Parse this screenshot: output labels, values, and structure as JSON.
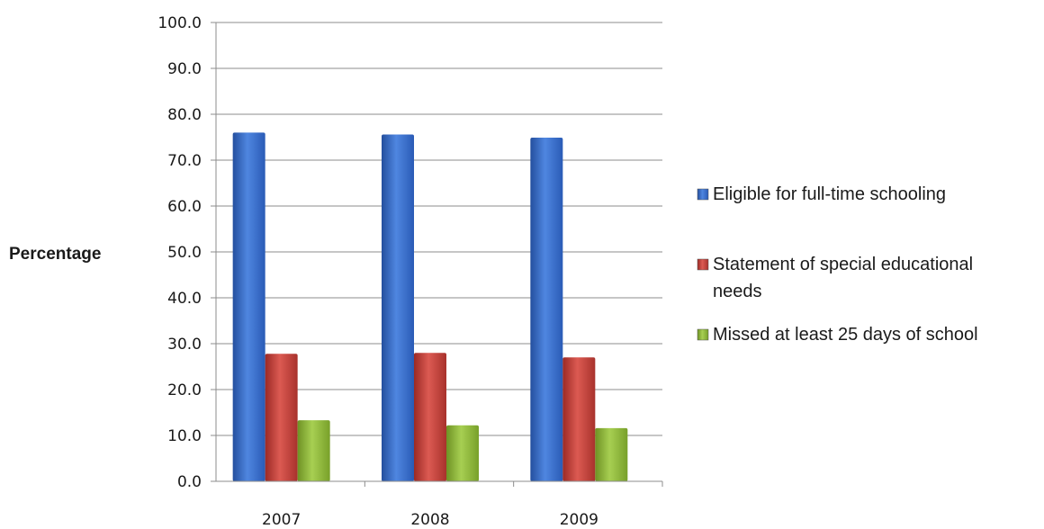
{
  "chart_data": {
    "type": "bar",
    "ylabel": "Percentage",
    "xlabel": "",
    "ylim": [
      0,
      100
    ],
    "yticks": [
      "0.0",
      "10.0",
      "20.0",
      "30.0",
      "40.0",
      "50.0",
      "60.0",
      "70.0",
      "80.0",
      "90.0",
      "100.0"
    ],
    "categories": [
      "2007",
      "2008",
      "2009"
    ],
    "grid": true,
    "legend_position": "right",
    "series": [
      {
        "name": "Eligible for full-time schooling",
        "color": "#3b6fd0",
        "values": [
          76.0,
          75.6,
          74.9
        ]
      },
      {
        "name": "Statement of special educational needs",
        "color": "#c8403a",
        "values": [
          27.8,
          28.0,
          27.0
        ]
      },
      {
        "name": "Missed at least 25 days of school",
        "color": "#8fb83a",
        "values": [
          13.3,
          12.2,
          11.6
        ]
      }
    ]
  }
}
